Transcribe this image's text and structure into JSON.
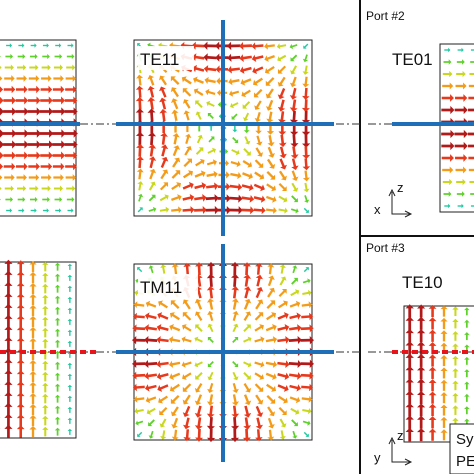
{
  "panels": {
    "mode_te11": "TE11",
    "mode_tm11": "TM11",
    "port2": {
      "title": "Port #2",
      "mode": "TE01",
      "axis_h": "x",
      "axis_v": "z"
    },
    "port3": {
      "title": "Port #3",
      "mode": "TE10",
      "axis_h": "y",
      "axis_v": "z"
    }
  },
  "legend": {
    "symmetry_fragment": "Sy",
    "pec_fragment": "PE",
    "symmetry_color": "#111111",
    "pec_color": "#e8141c"
  },
  "colors": {
    "symmetry_plane_line": "#1f6fb8",
    "pec_plane_line": "#e8141c",
    "field_scale": [
      "#1fb8d8",
      "#22c9a0",
      "#5ed12a",
      "#c9d81e",
      "#f39c1a",
      "#e7391c",
      "#b21a1a"
    ]
  },
  "field_maps": [
    {
      "id": "top-left",
      "pattern": "horizontal-band"
    },
    {
      "id": "te11",
      "pattern": "te11"
    },
    {
      "id": "te01",
      "pattern": "vertical-band"
    },
    {
      "id": "bottom-left",
      "pattern": "vertical-columns"
    },
    {
      "id": "tm11",
      "pattern": "tm11"
    },
    {
      "id": "te10",
      "pattern": "vertical-columns"
    }
  ]
}
